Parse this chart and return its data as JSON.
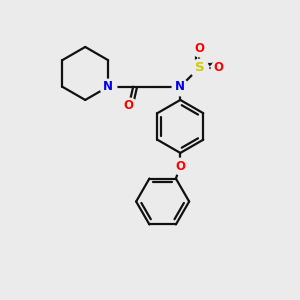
{
  "bg_color": "#ebebeb",
  "atom_colors": {
    "N": "#0000ee",
    "O": "#ff0000",
    "S": "#cccc00",
    "C": "#111111"
  },
  "line_color": "#111111",
  "line_width": 1.6,
  "font_size": 8.5
}
